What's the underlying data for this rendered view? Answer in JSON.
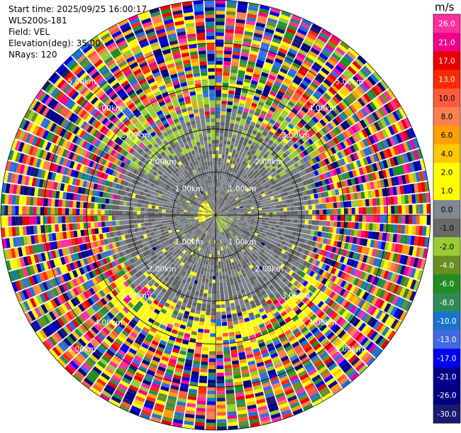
{
  "header": {
    "start_time": "Start time: 2025/09/25 16:00:17",
    "instrument": "WLS200s-181",
    "field": "Field: VEL",
    "elevation": "Elevation(deg): 35.00",
    "nrays": "NRays: 120"
  },
  "colorbar": {
    "unit": "m/s",
    "ticks": [
      "26.0",
      "21.0",
      "17.0",
      "13.0",
      "10.0",
      "8.0",
      "6.0",
      "4.0",
      "2.0",
      "1.0",
      "0.0",
      "-1.0",
      "-2.0",
      "-4.0",
      "-6.0",
      "-8.0",
      "-10.0",
      "-13.0",
      "-17.0",
      "-21.0",
      "-26.0",
      "-30.0"
    ],
    "colors": [
      "#ff2fa0",
      "#f0008a",
      "#e80000",
      "#ff2a00",
      "#ff5a3c",
      "#ff7f50",
      "#ff9f00",
      "#ffc800",
      "#ffff00",
      "#ffff00",
      "#808890",
      "#696969",
      "#9acd32",
      "#6b8e23",
      "#228b22",
      "#2e8b57",
      "#1874cd",
      "#4169e1",
      "#0000ee",
      "#00008b",
      "#000080",
      "#191970"
    ]
  },
  "chart_data": {
    "type": "polar-ppi",
    "field": "VEL",
    "units": "m/s",
    "n_rays": 120,
    "elevation_deg": 35.0,
    "range_rings_km": [
      1.0,
      2.0,
      3.0,
      4.0,
      5.0
    ],
    "range_labels": [
      "1.00km",
      "2.00km",
      "3.00km",
      "4.00km",
      "5.00km"
    ],
    "label_ring_order": [
      1,
      2,
      3,
      4,
      5
    ],
    "max_range_km": 5.0,
    "inner_noise_km": 0.45,
    "colorbar_min": -30.0,
    "colorbar_max": 26.0,
    "grid": true
  }
}
